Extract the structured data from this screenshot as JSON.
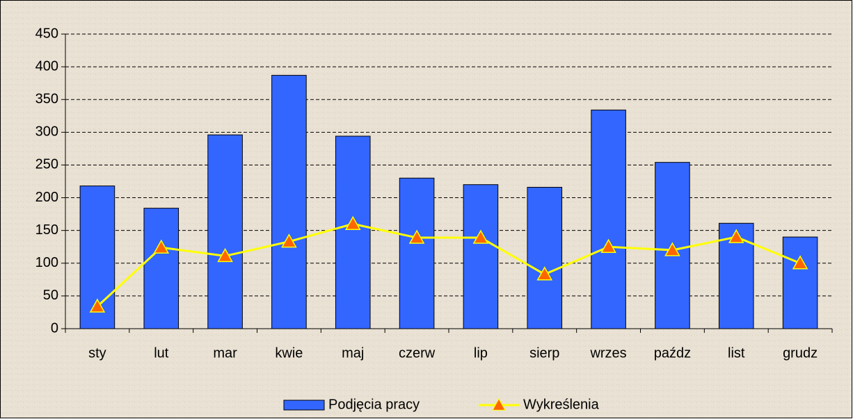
{
  "chart_data": {
    "type": "bar",
    "categories": [
      "sty",
      "lut",
      "mar",
      "kwie",
      "maj",
      "czerw",
      "lip",
      "sierp",
      "wrzes",
      "paźdz",
      "list",
      "grudz"
    ],
    "series": [
      {
        "name": "Podjęcia pracy",
        "type": "bar",
        "color": "#3366ff",
        "values": [
          218,
          184,
          296,
          387,
          294,
          230,
          220,
          216,
          334,
          254,
          161,
          140
        ]
      },
      {
        "name": "Wykreślenia",
        "type": "line",
        "color": "#ffff00",
        "marker_color": "#ff6600",
        "values": [
          34,
          124,
          111,
          133,
          160,
          139,
          139,
          83,
          125,
          120,
          140,
          100
        ]
      }
    ],
    "ylim": [
      0,
      450
    ],
    "yticks": [
      0,
      50,
      100,
      150,
      200,
      250,
      300,
      350,
      400,
      450
    ],
    "grid": true,
    "legend": "bottom"
  }
}
